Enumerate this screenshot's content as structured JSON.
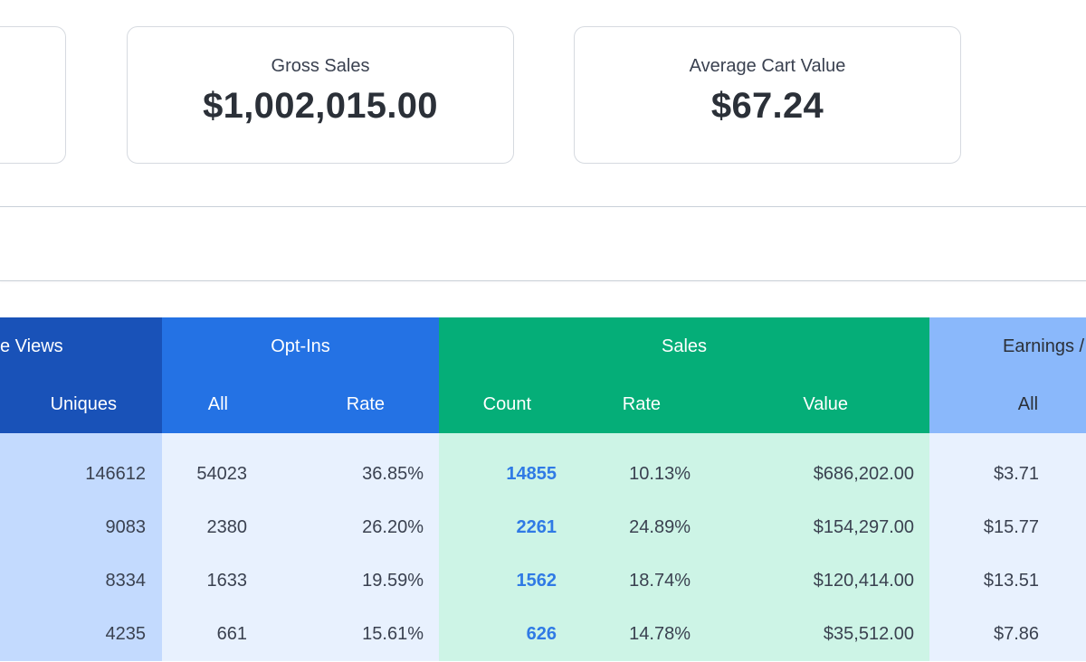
{
  "cards": {
    "gross_sales": {
      "label": "Gross Sales",
      "value": "$1,002,015.00"
    },
    "average_cart": {
      "label": "Average Cart Value",
      "value": "$67.24"
    }
  },
  "table": {
    "groups": {
      "views": "e Views",
      "optins": "Opt-Ins",
      "sales": "Sales",
      "earnings": "Earnings /"
    },
    "subheaders": {
      "uniques": "Uniques",
      "optins_all": "All",
      "optins_rate": "Rate",
      "sales_count": "Count",
      "sales_rate": "Rate",
      "sales_value": "Value",
      "earnings_all": "All"
    },
    "rows": [
      {
        "uniques": "146612",
        "optins_all": "54023",
        "optins_rate": "36.85%",
        "sales_count": "14855",
        "sales_rate": "10.13%",
        "sales_value": "$686,202.00",
        "earnings_all": "$3.71"
      },
      {
        "uniques": "9083",
        "optins_all": "2380",
        "optins_rate": "26.20%",
        "sales_count": "2261",
        "sales_rate": "24.89%",
        "sales_value": "$154,297.00",
        "earnings_all": "$15.77"
      },
      {
        "uniques": "8334",
        "optins_all": "1633",
        "optins_rate": "19.59%",
        "sales_count": "1562",
        "sales_rate": "18.74%",
        "sales_value": "$120,414.00",
        "earnings_all": "$13.51"
      },
      {
        "uniques": "4235",
        "optins_all": "661",
        "optins_rate": "15.61%",
        "sales_count": "626",
        "sales_rate": "14.78%",
        "sales_value": "$35,512.00",
        "earnings_all": "$7.86"
      }
    ]
  },
  "colors": {
    "views_header": "#1952b8",
    "optins_header": "#2472e4",
    "sales_header": "#05ae78",
    "earnings_header": "#8ab8fb",
    "link_number": "#2f7ae5"
  }
}
